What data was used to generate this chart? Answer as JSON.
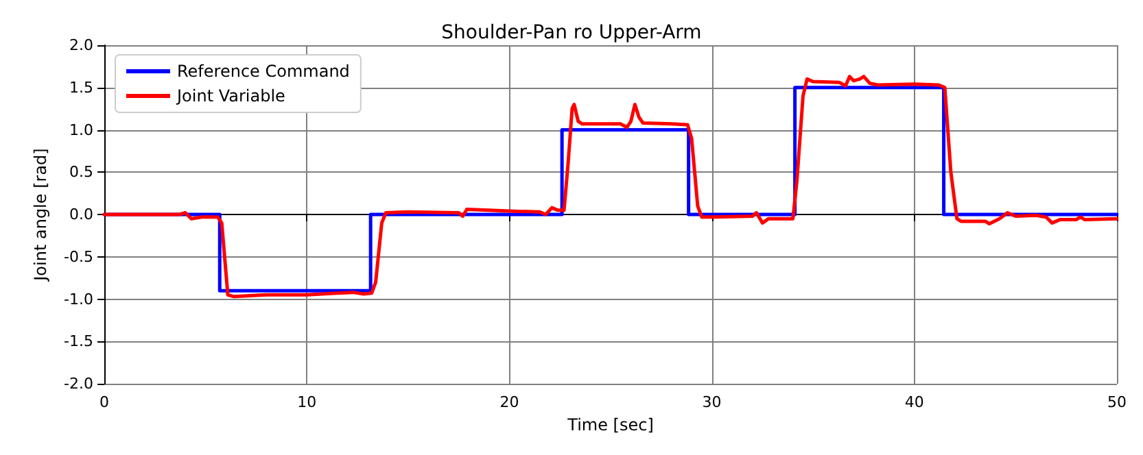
{
  "chart_data": {
    "type": "line",
    "title": "Shoulder-Pan ro Upper-Arm",
    "xlabel": "Time [sec]",
    "ylabel": "Joint angle [rad]",
    "xlim": [
      0,
      50
    ],
    "xticks": [
      0,
      10,
      20,
      30,
      40,
      50
    ],
    "ylim": [
      -2,
      2
    ],
    "yticks": [
      {
        "value": -2,
        "label": "-2.0"
      },
      {
        "value": -1.5,
        "label": "-1.5"
      },
      {
        "value": -1,
        "label": "-1.0"
      },
      {
        "value": -0.5,
        "label": "-0.5"
      },
      {
        "value": 0,
        "label": "0.0"
      },
      {
        "value": 0.5,
        "label": "0.5"
      },
      {
        "value": 1,
        "label": "1.0"
      },
      {
        "value": 1.5,
        "label": "1.5"
      },
      {
        "value": 2,
        "label": "2.0"
      }
    ],
    "grid": true,
    "legend": "top left",
    "marker": "none",
    "line_style": "solid",
    "series": [
      {
        "name": "Reference Command",
        "color": "#0000ff",
        "x": [
          0,
          5.7,
          5.7,
          13.15,
          13.15,
          22.6,
          22.6,
          28.85,
          28.85,
          34.1,
          34.1,
          41.45,
          41.45,
          50
        ],
        "values": [
          0,
          0,
          -0.9,
          -0.9,
          0,
          0,
          1,
          1,
          0,
          0,
          1.5,
          1.5,
          0,
          0
        ]
      },
      {
        "name": "Joint Variable",
        "color": "#ff0000",
        "x": [
          0,
          3.7,
          4.0,
          4.3,
          4.8,
          5.6,
          5.8,
          6.1,
          6.4,
          8,
          10,
          11.5,
          12.3,
          12.8,
          13.2,
          13.4,
          13.7,
          13.9,
          15,
          17.5,
          17.7,
          17.9,
          19,
          20,
          21.5,
          21.8,
          22.1,
          22.4,
          22.7,
          22.9,
          23.1,
          23.2,
          23.4,
          23.6,
          25.5,
          25.8,
          26.0,
          26.2,
          26.4,
          26.6,
          28,
          28.8,
          29.0,
          29.3,
          29.5,
          30,
          32.0,
          32.2,
          32.5,
          32.8,
          34.0,
          34.2,
          34.5,
          34.7,
          35.0,
          36.3,
          36.6,
          36.8,
          37.0,
          37.3,
          37.5,
          37.8,
          38.2,
          40,
          41.2,
          41.5,
          41.8,
          42.1,
          42.3,
          43.5,
          43.7,
          44.2,
          44.6,
          45,
          46,
          46.5,
          46.8,
          47.2,
          48,
          48.2,
          48.4,
          50
        ],
        "values": [
          0,
          0,
          0.02,
          -0.05,
          -0.03,
          -0.03,
          -0.1,
          -0.95,
          -0.97,
          -0.95,
          -0.95,
          -0.93,
          -0.92,
          -0.94,
          -0.93,
          -0.8,
          -0.1,
          0.02,
          0.03,
          0.02,
          -0.02,
          0.06,
          0.05,
          0.04,
          0.03,
          0,
          0.08,
          0.05,
          0.05,
          0.6,
          1.25,
          1.3,
          1.1,
          1.07,
          1.07,
          1.03,
          1.1,
          1.3,
          1.15,
          1.08,
          1.07,
          1.06,
          0.9,
          0.1,
          -0.03,
          -0.03,
          -0.02,
          0.02,
          -0.1,
          -0.05,
          -0.05,
          0.4,
          1.4,
          1.6,
          1.57,
          1.56,
          1.52,
          1.63,
          1.58,
          1.6,
          1.63,
          1.55,
          1.53,
          1.54,
          1.53,
          1.5,
          0.5,
          -0.05,
          -0.08,
          -0.08,
          -0.11,
          -0.05,
          0.02,
          -0.02,
          -0.01,
          -0.03,
          -0.1,
          -0.06,
          -0.06,
          -0.03,
          -0.06,
          -0.05
        ]
      }
    ]
  }
}
